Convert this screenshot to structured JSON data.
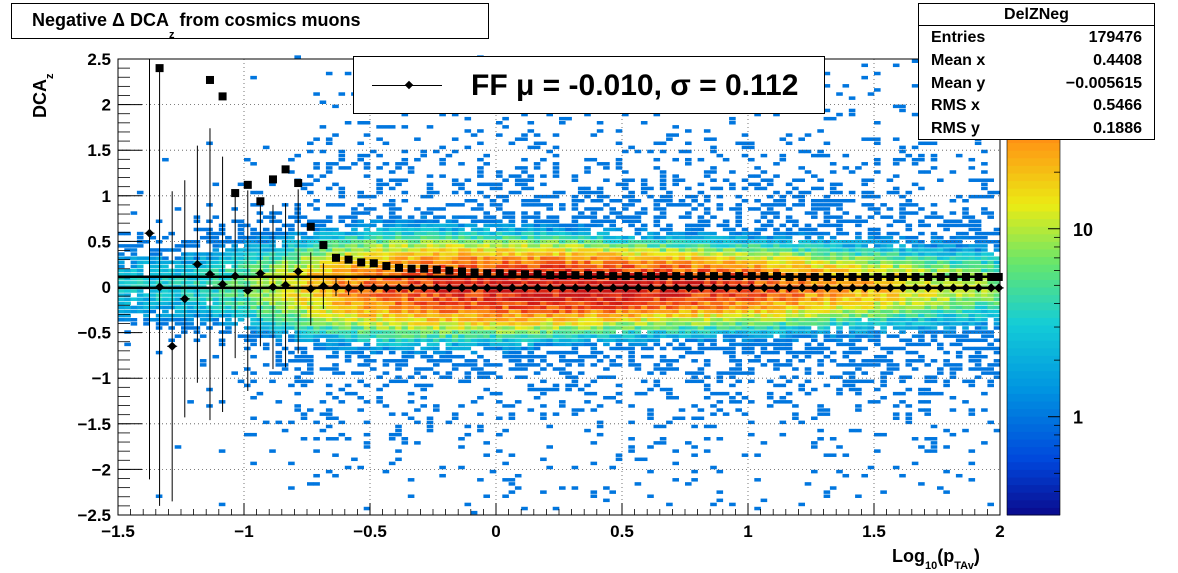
{
  "title": {
    "main": "Negative Δ DCA",
    "sub": "z",
    "rest": " from cosmics muons"
  },
  "stats": {
    "name": "DelZNeg",
    "rows": [
      {
        "label": "Entries",
        "value": "179476"
      },
      {
        "label": "Mean x",
        "value": "0.4408"
      },
      {
        "label": "Mean y",
        "value": "−0.005615"
      },
      {
        "label": "RMS x",
        "value": "0.5466"
      },
      {
        "label": "RMS y",
        "value": "0.1886"
      }
    ]
  },
  "legend": {
    "text": "FF μ = -0.010, σ =   0.112"
  },
  "chart_data": {
    "type": "heatmap",
    "xlim": [
      -1.5,
      2
    ],
    "ylim": [
      -2.5,
      2.5
    ],
    "xlabel": {
      "main": "Log",
      "sub1": "10",
      "mid": "(p",
      "sub2": "TAv",
      "end": ")"
    },
    "ylabel": {
      "main": "DCA",
      "sub": "z"
    },
    "xticks": [
      -1.5,
      -1,
      -0.5,
      0,
      0.5,
      1,
      1.5,
      2
    ],
    "xtick_labels": [
      "−1.5",
      "−1",
      "−0.5",
      "0",
      "0.5",
      "1",
      "1.5",
      "2"
    ],
    "yticks": [
      -2.5,
      -2,
      -1.5,
      -1,
      -0.5,
      0,
      0.5,
      1,
      1.5,
      2,
      2.5
    ],
    "ytick_labels": [
      "−2.5",
      "−2",
      "−1.5",
      "−1",
      "−0.5",
      "0",
      "0.5",
      "1",
      "1.5",
      "2",
      "2.5"
    ],
    "grid": true,
    "log_z": true,
    "colorbar_ticks": [
      1,
      10
    ],
    "colorbar_tick_labels": [
      "1",
      "10"
    ],
    "colorbar_range": [
      0.3,
      80
    ],
    "hlines": [
      0.112,
      -0.01
    ],
    "mean_series": {
      "marker": "diamond",
      "x": [
        -1.375,
        -1.335,
        -1.285,
        -1.235,
        -1.185,
        -1.135,
        -1.085,
        -1.035,
        -0.985,
        -0.935,
        -0.885,
        -0.835,
        -0.785,
        -0.735,
        -0.685,
        -0.635,
        -0.585,
        -0.535,
        -0.485,
        -0.435,
        -0.385,
        -0.335,
        -0.285,
        -0.235,
        -0.185,
        -0.135,
        -0.085,
        -0.035,
        0.015,
        0.065,
        0.115,
        0.165,
        0.215,
        0.265,
        0.315,
        0.365,
        0.415,
        0.465,
        0.515,
        0.565,
        0.615,
        0.665,
        0.715,
        0.765,
        0.815,
        0.865,
        0.915,
        0.965,
        1.015,
        1.065,
        1.115,
        1.165,
        1.215,
        1.265,
        1.315,
        1.365,
        1.415,
        1.465,
        1.515,
        1.565,
        1.615,
        1.665,
        1.715,
        1.765,
        1.815,
        1.865,
        1.915,
        1.965,
        1.995
      ],
      "y": [
        0.59,
        0.0,
        -0.65,
        -0.13,
        0.25,
        0.14,
        0.03,
        0.12,
        -0.04,
        0.15,
        0.0,
        0.02,
        0.17,
        -0.02,
        0.01,
        0.0,
        -0.01,
        -0.01,
        -0.01,
        -0.01,
        -0.01,
        -0.01,
        -0.01,
        -0.01,
        -0.01,
        -0.01,
        -0.01,
        -0.01,
        -0.01,
        -0.01,
        -0.01,
        -0.01,
        -0.01,
        -0.01,
        -0.01,
        -0.01,
        -0.01,
        -0.01,
        -0.01,
        -0.01,
        -0.01,
        -0.01,
        -0.01,
        -0.01,
        -0.01,
        -0.01,
        -0.01,
        -0.01,
        -0.01,
        -0.01,
        -0.01,
        -0.01,
        -0.01,
        -0.01,
        -0.01,
        -0.01,
        -0.01,
        -0.01,
        -0.01,
        -0.01,
        -0.01,
        -0.01,
        -0.01,
        -0.01,
        -0.01,
        -0.01,
        -0.01,
        -0.01,
        -0.01
      ],
      "err": [
        2.7,
        2.4,
        1.7,
        1.3,
        1.3,
        1.6,
        1.4,
        0.9,
        1.1,
        0.8,
        0.9,
        0.9,
        0.9,
        0.4,
        0.25,
        0.1,
        0.08,
        0.06,
        0.05,
        0.05,
        0.04,
        0.04,
        0.04,
        0.03,
        0.03,
        0.03,
        0.03,
        0.03,
        0.03,
        0.03,
        0.03,
        0.03,
        0.03,
        0.03,
        0.03,
        0.03,
        0.03,
        0.03,
        0.03,
        0.03,
        0.03,
        0.03,
        0.03,
        0.03,
        0.03,
        0.03,
        0.03,
        0.03,
        0.03,
        0.03,
        0.03,
        0.03,
        0.03,
        0.03,
        0.03,
        0.03,
        0.03,
        0.03,
        0.03,
        0.03,
        0.03,
        0.03,
        0.03,
        0.03,
        0.03,
        0.03,
        0.03,
        0.03,
        0.03
      ]
    },
    "rms_series": {
      "marker": "square",
      "x": [
        -1.335,
        -1.135,
        -1.085,
        -1.035,
        -0.985,
        -0.935,
        -0.885,
        -0.835,
        -0.785,
        -0.735,
        -0.685,
        -0.635,
        -0.585,
        -0.535,
        -0.485,
        -0.435,
        -0.385,
        -0.335,
        -0.285,
        -0.235,
        -0.185,
        -0.135,
        -0.085,
        -0.035,
        0.015,
        0.065,
        0.115,
        0.165,
        0.215,
        0.265,
        0.315,
        0.365,
        0.415,
        0.465,
        0.515,
        0.565,
        0.615,
        0.665,
        0.715,
        0.765,
        0.815,
        0.865,
        0.915,
        0.965,
        1.015,
        1.065,
        1.115,
        1.165,
        1.215,
        1.265,
        1.315,
        1.365,
        1.415,
        1.465,
        1.515,
        1.565,
        1.615,
        1.665,
        1.715,
        1.765,
        1.815,
        1.865,
        1.915,
        1.965,
        1.995
      ],
      "y": [
        2.4,
        2.27,
        2.09,
        1.03,
        1.12,
        0.94,
        1.18,
        1.29,
        1.14,
        0.66,
        0.46,
        0.32,
        0.3,
        0.27,
        0.26,
        0.23,
        0.21,
        0.2,
        0.2,
        0.19,
        0.18,
        0.17,
        0.16,
        0.15,
        0.15,
        0.14,
        0.14,
        0.14,
        0.13,
        0.13,
        0.13,
        0.13,
        0.13,
        0.12,
        0.12,
        0.12,
        0.12,
        0.12,
        0.12,
        0.12,
        0.12,
        0.12,
        0.12,
        0.12,
        0.12,
        0.12,
        0.12,
        0.11,
        0.11,
        0.11,
        0.11,
        0.11,
        0.11,
        0.11,
        0.11,
        0.11,
        0.11,
        0.11,
        0.11,
        0.11,
        0.11,
        0.11,
        0.11,
        0.11,
        0.11
      ]
    }
  }
}
